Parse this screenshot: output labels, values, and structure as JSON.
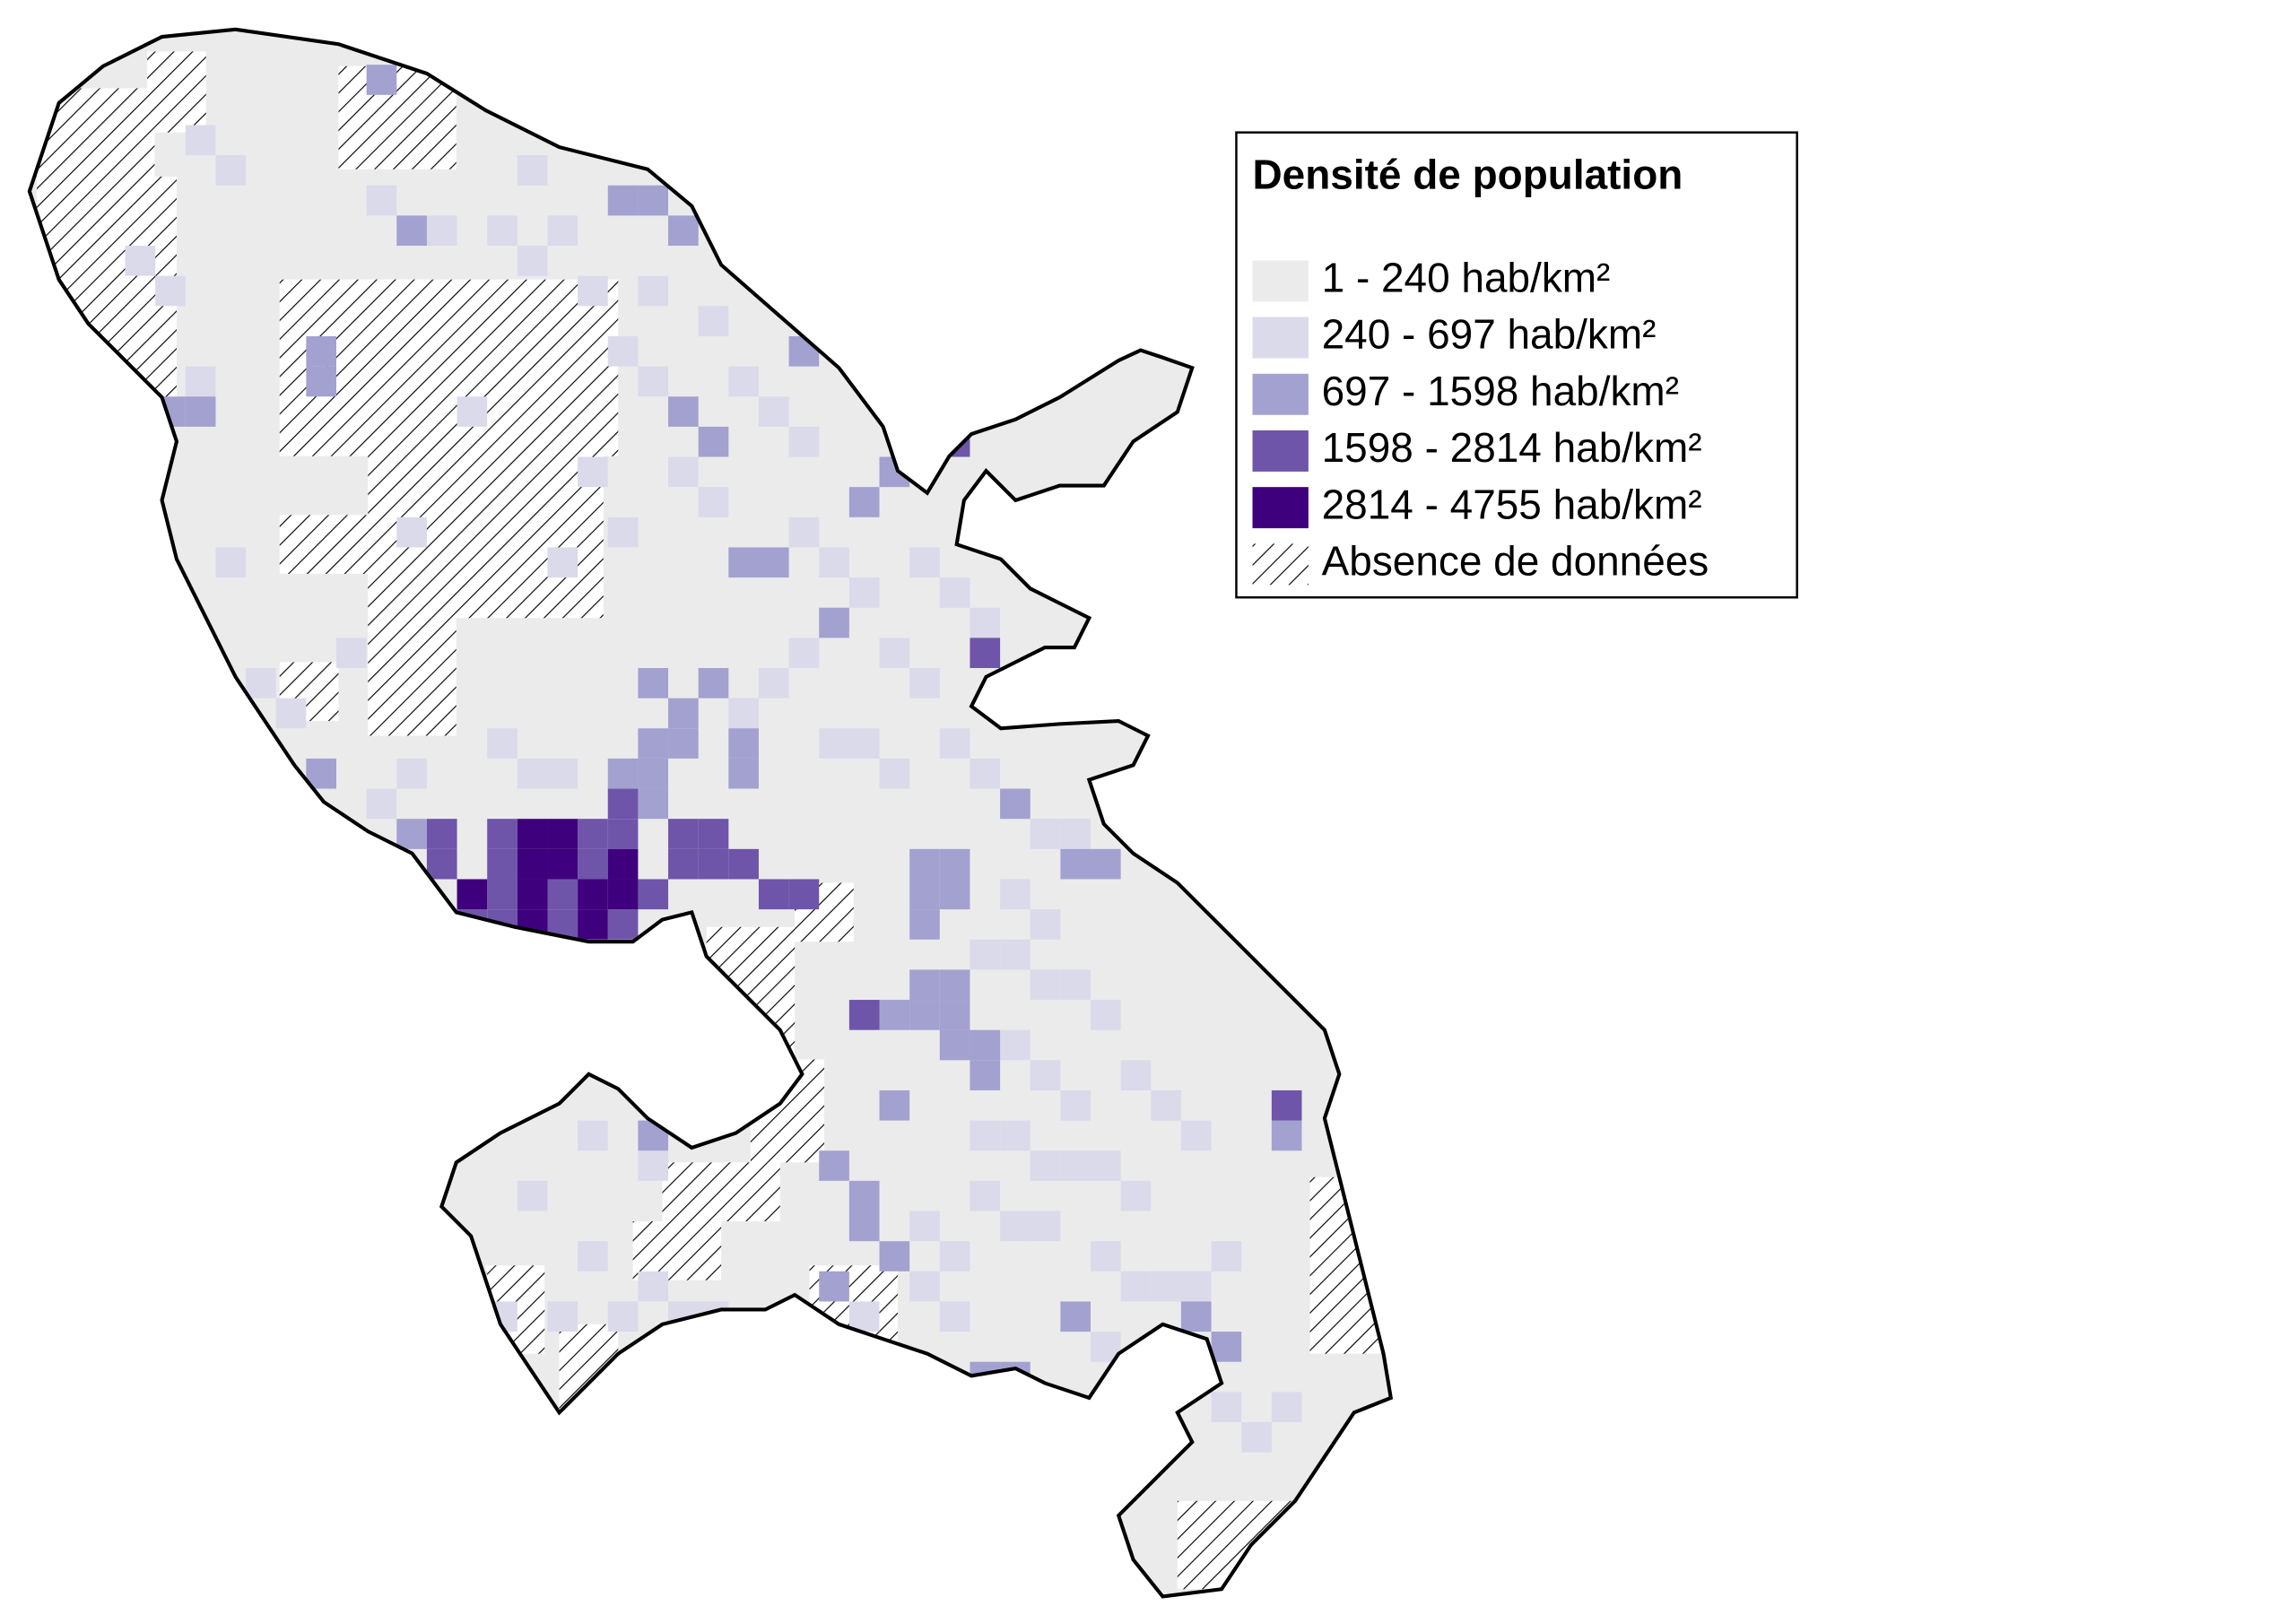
{
  "legend": {
    "title": "Densité de population",
    "items": [
      {
        "label": "1 - 240 hab/km²",
        "color": "#ebebeb"
      },
      {
        "label": "240 - 697 hab/km²",
        "color": "#dadaeb"
      },
      {
        "label": "697 - 1598 hab/km²",
        "color": "#a3a1d0"
      },
      {
        "label": "1598 - 2814 hab/km²",
        "color": "#6f55a9"
      },
      {
        "label": "2814 - 4755 hab/km²",
        "color": "#3f007d"
      }
    ],
    "no_data": {
      "label": "Absence de données"
    }
  }
}
